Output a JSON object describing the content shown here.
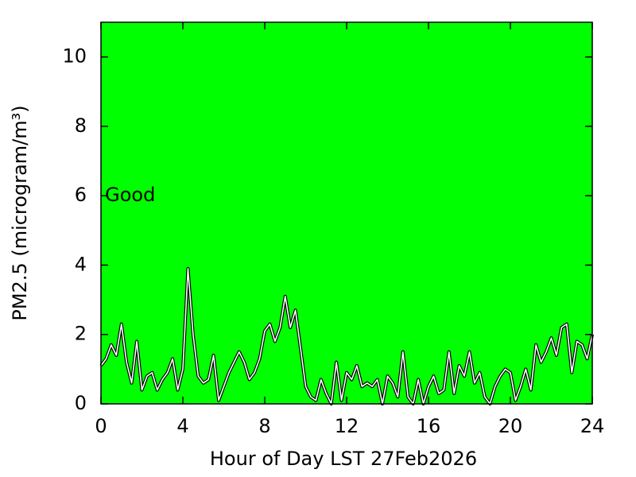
{
  "chart_data": {
    "type": "line",
    "xlabel": "Hour of Day LST 27Feb2026",
    "ylabel": "PM2.5 (microgram/m³)",
    "annotation": {
      "text": "Good",
      "x": 0.2,
      "y": 6
    },
    "background": "#00ff00",
    "x": [
      0,
      0.25,
      0.5,
      0.75,
      1,
      1.25,
      1.5,
      1.75,
      2,
      2.25,
      2.5,
      2.75,
      3,
      3.25,
      3.5,
      3.75,
      4,
      4.25,
      4.5,
      4.75,
      5,
      5.25,
      5.5,
      5.75,
      6,
      6.25,
      6.5,
      6.75,
      7,
      7.25,
      7.5,
      7.75,
      8,
      8.25,
      8.5,
      8.75,
      9,
      9.25,
      9.5,
      9.75,
      10,
      10.25,
      10.5,
      10.75,
      11,
      11.25,
      11.5,
      11.75,
      12,
      12.25,
      12.5,
      12.75,
      13,
      13.25,
      13.5,
      13.75,
      14,
      14.25,
      14.5,
      14.75,
      15,
      15.25,
      15.5,
      15.75,
      16,
      16.25,
      16.5,
      16.75,
      17,
      17.25,
      17.5,
      17.75,
      18,
      18.25,
      18.5,
      18.75,
      19,
      19.25,
      19.5,
      19.75,
      20,
      20.25,
      20.5,
      20.75,
      21,
      21.25,
      21.5,
      21.75,
      22,
      22.25,
      22.5,
      22.75,
      23,
      23.25,
      23.5,
      23.75,
      24
    ],
    "series": [
      {
        "color": "#ffffff",
        "values": [
          1.1,
          1.3,
          1.7,
          1.4,
          2.3,
          1.2,
          0.6,
          1.8,
          0.4,
          0.8,
          0.9,
          0.4,
          0.7,
          0.9,
          1.3,
          0.4,
          1.0,
          3.9,
          2.0,
          0.8,
          0.6,
          0.7,
          1.4,
          0.1,
          0.5,
          0.9,
          1.2,
          1.5,
          1.2,
          0.7,
          0.9,
          1.3,
          2.1,
          2.3,
          1.8,
          2.2,
          3.1,
          2.2,
          2.7,
          1.6,
          0.5,
          0.2,
          0.1,
          0.7,
          0.3,
          0.0,
          1.2,
          0.1,
          0.9,
          0.7,
          1.1,
          0.5,
          0.6,
          0.5,
          0.7,
          0.0,
          0.8,
          0.6,
          0.2,
          1.5,
          0.2,
          0.0,
          0.7,
          0.0,
          0.5,
          0.8,
          0.3,
          0.4,
          1.5,
          0.3,
          1.1,
          0.8,
          1.5,
          0.6,
          0.9,
          0.2,
          0.0,
          0.5,
          0.8,
          1.0,
          0.9,
          0.1,
          0.5,
          1.0,
          0.4,
          1.7,
          1.2,
          1.5,
          1.9,
          1.4,
          2.2,
          2.3,
          0.9,
          1.8,
          1.7,
          1.3,
          2.0
        ]
      }
    ],
    "xlim": [
      0,
      24
    ],
    "xticks": [
      0,
      4,
      8,
      12,
      16,
      20,
      24
    ],
    "ylim": [
      0,
      11
    ],
    "yticks": [
      0,
      2,
      4,
      6,
      8,
      10
    ]
  }
}
